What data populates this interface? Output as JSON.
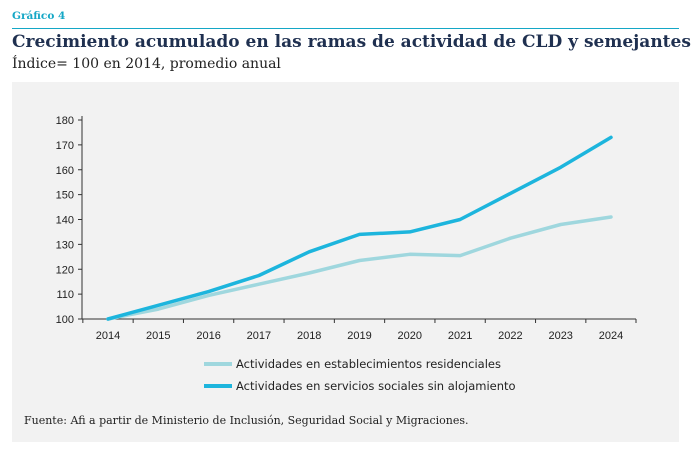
{
  "header": {
    "kicker": "Gráfico 4",
    "title": "Crecimiento acumulado en las ramas de actividad de CLD y semejantes",
    "subtitle": "Índice= 100 en 2014, promedio anual"
  },
  "footer": {
    "source": "Fuente: Afi a partir de Ministerio de Inclusión, Seguridad Social y Migraciones."
  },
  "colors": {
    "accent": "#14a7c6",
    "panel": "#f2f2f2"
  },
  "chart_data": {
    "type": "line",
    "title": "Crecimiento acumulado en las ramas de actividad de CLD y semejantes",
    "subtitle": "Índice= 100 en 2014, promedio anual",
    "xlabel": "",
    "ylabel": "",
    "x": [
      "2014",
      "2015",
      "2016",
      "2017",
      "2018",
      "2019",
      "2020",
      "2021",
      "2022",
      "2023",
      "2024"
    ],
    "ylim": [
      100,
      180
    ],
    "yticks": [
      "100",
      "110",
      "120",
      "130",
      "140",
      "150",
      "160",
      "170",
      "180"
    ],
    "grid": false,
    "legend_position": "bottom",
    "series": [
      {
        "name": "Actividades en establecimientos residenciales",
        "color": "#9fd7de",
        "values": [
          100,
          104,
          109.5,
          114,
          118.5,
          123.5,
          126,
          125.5,
          132.5,
          138,
          141
        ]
      },
      {
        "name": "Actividades en servicios sociales sin alojamiento",
        "color": "#1db5dd",
        "values": [
          100,
          105.5,
          111,
          117.5,
          127,
          134,
          135,
          140,
          150.5,
          161,
          173
        ]
      }
    ]
  }
}
